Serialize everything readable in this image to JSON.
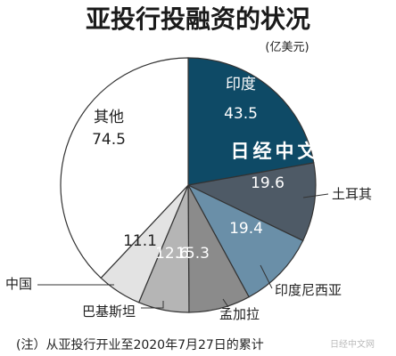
{
  "chart_data": {
    "type": "pie",
    "title": "亚投行投融资的状况",
    "unit": "(亿美元)",
    "slices": [
      {
        "label": "印度",
        "value": 43.5,
        "color": "#0e4a66",
        "text_color": "#ffffff"
      },
      {
        "label": "土耳其",
        "value": 19.6,
        "color": "#4e5a66",
        "text_color": "#ffffff"
      },
      {
        "label": "印度尼西亚",
        "value": 19.4,
        "color": "#6a8fa8",
        "text_color": "#ffffff"
      },
      {
        "label": "孟加拉",
        "value": 15.3,
        "color": "#8b8b8b",
        "text_color": "#ffffff"
      },
      {
        "label": "巴基斯坦",
        "value": 12.6,
        "color": "#b5b5b5",
        "text_color": "#ffffff"
      },
      {
        "label": "中国",
        "value": 11.1,
        "color": "#e3e3e3",
        "text_color": "#222222"
      },
      {
        "label": "其他",
        "value": 74.5,
        "color": "#ffffff",
        "text_color": "#222222"
      }
    ],
    "note": "(注）从亚投行开业至2020年7月27日的累计"
  },
  "watermark": {
    "text": "日经中文网",
    "small_text": "日经中文网"
  }
}
